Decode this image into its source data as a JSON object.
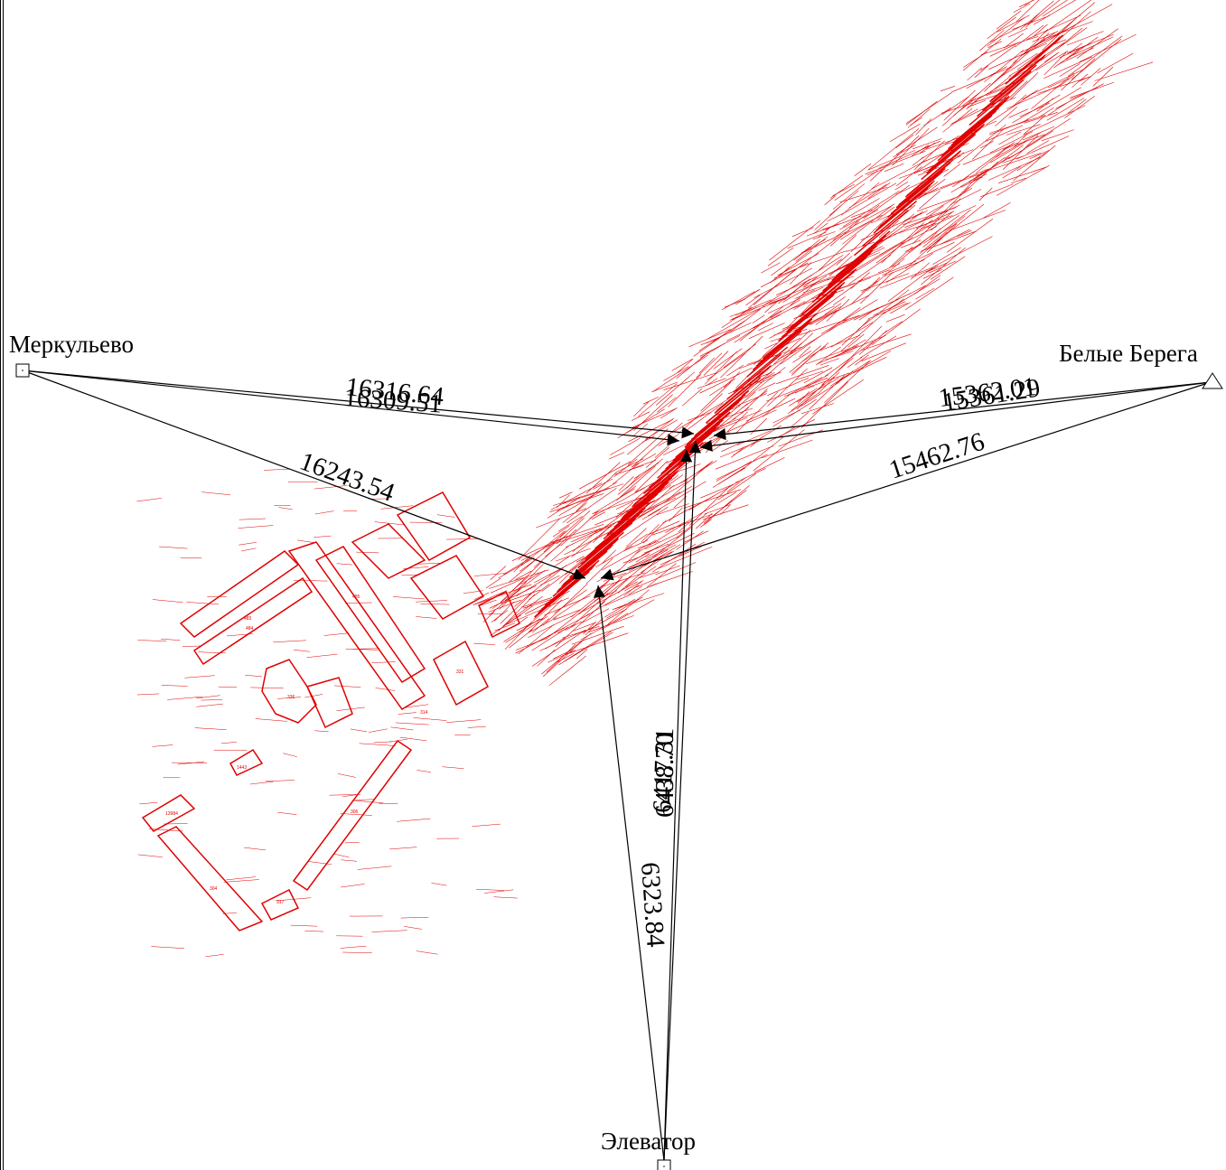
{
  "stations": [
    {
      "id": "merkulevo",
      "name": "Меркульево",
      "symbol": "square"
    },
    {
      "id": "belye-berega",
      "name": "Белые Берега",
      "symbol": "triangle"
    },
    {
      "id": "elevator",
      "name": "Элеватор",
      "symbol": "square"
    }
  ],
  "distances": [
    {
      "id": "d1",
      "text": "16316.64"
    },
    {
      "id": "d2",
      "text": "16309.51"
    },
    {
      "id": "d3",
      "text": "16243.54"
    },
    {
      "id": "d4",
      "text": "15362.01"
    },
    {
      "id": "d5",
      "text": "15361.29"
    },
    {
      "id": "d6",
      "text": "15462.76"
    },
    {
      "id": "d7",
      "text": "6438.70"
    },
    {
      "id": "d8",
      "text": "6417.31"
    },
    {
      "id": "d9",
      "text": "6323.84"
    }
  ],
  "building_labels": [
    "483",
    "484",
    "485",
    "331",
    "336",
    "314",
    "306",
    "304",
    "317",
    "1443",
    "13984"
  ],
  "colors": {
    "survey_points": "#e00000",
    "rays": "#000000",
    "background": "#ffffff"
  }
}
